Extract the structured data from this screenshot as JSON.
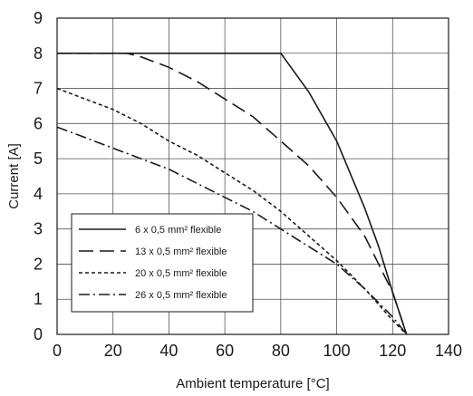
{
  "chart_data": {
    "type": "line",
    "title": "",
    "xlabel": "Ambient temperature [°C]",
    "ylabel": "Current [A]",
    "xlim": [
      0,
      140
    ],
    "ylim": [
      0,
      9
    ],
    "x_ticks": [
      "0",
      "20",
      "40",
      "60",
      "80",
      "100",
      "120",
      "140"
    ],
    "y_ticks": [
      "0",
      "1",
      "2",
      "3",
      "4",
      "5",
      "6",
      "7",
      "8",
      "9"
    ],
    "grid": true,
    "legend_position": "lower-left",
    "series": [
      {
        "name": "6 x 0,5 mm² flexible",
        "dash": "solid",
        "points": [
          [
            0,
            8
          ],
          [
            80,
            8
          ],
          [
            90,
            6.9
          ],
          [
            100,
            5.5
          ],
          [
            110,
            3.6
          ],
          [
            115,
            2.5
          ],
          [
            120,
            1.2
          ],
          [
            125,
            0
          ]
        ]
      },
      {
        "name": "13 x 0,5 mm² flexible",
        "dash": "long-dash",
        "points": [
          [
            0,
            8
          ],
          [
            25,
            8
          ],
          [
            30,
            7.9
          ],
          [
            40,
            7.6
          ],
          [
            50,
            7.2
          ],
          [
            60,
            6.7
          ],
          [
            70,
            6.2
          ],
          [
            80,
            5.5
          ],
          [
            90,
            4.8
          ],
          [
            100,
            3.9
          ],
          [
            110,
            2.8
          ],
          [
            120,
            1.2
          ],
          [
            125,
            0
          ]
        ]
      },
      {
        "name": "20 x 0,5 mm² flexible",
        "dash": "short-dash",
        "points": [
          [
            0,
            7.0
          ],
          [
            10,
            6.7
          ],
          [
            20,
            6.4
          ],
          [
            30,
            6.0
          ],
          [
            40,
            5.5
          ],
          [
            50,
            5.1
          ],
          [
            60,
            4.6
          ],
          [
            70,
            4.1
          ],
          [
            80,
            3.5
          ],
          [
            90,
            2.8
          ],
          [
            100,
            2.1
          ],
          [
            110,
            1.3
          ],
          [
            120,
            0.4
          ],
          [
            125,
            0
          ]
        ]
      },
      {
        "name": "26 x 0,5 mm² flexible",
        "dash": "dash-dot",
        "points": [
          [
            0,
            5.9
          ],
          [
            10,
            5.6
          ],
          [
            20,
            5.3
          ],
          [
            30,
            5.0
          ],
          [
            40,
            4.7
          ],
          [
            50,
            4.3
          ],
          [
            60,
            3.9
          ],
          [
            70,
            3.5
          ],
          [
            80,
            3.0
          ],
          [
            90,
            2.5
          ],
          [
            100,
            2.0
          ],
          [
            110,
            1.3
          ],
          [
            120,
            0.5
          ],
          [
            125,
            0
          ]
        ]
      }
    ]
  }
}
